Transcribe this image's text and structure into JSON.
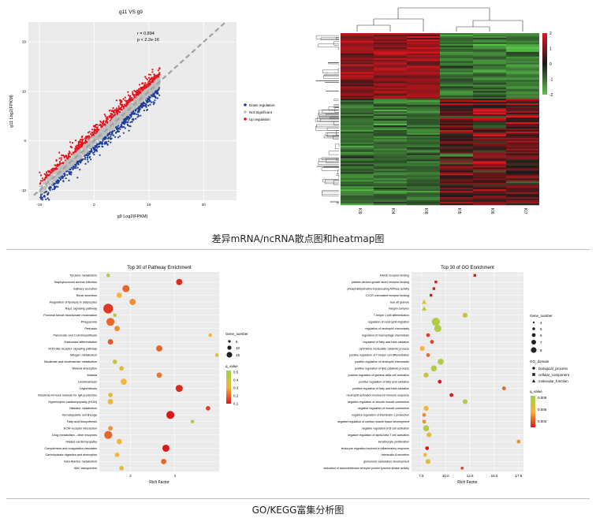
{
  "captions": {
    "top": "差异mRNA/ncRNA散点图和heatmap图",
    "bottom": "GO/KEGG富集分析图"
  },
  "colors": {
    "up": "#e3141c",
    "down": "#1f3e9a",
    "ns": "#bcbcbc",
    "heat_high": "#e3141c",
    "heat_mid": "#1a1a1a",
    "heat_low": "#58c54a",
    "grad_high": "#ffff00",
    "grad_low": "#d7191c"
  },
  "chart_data": [
    {
      "id": "scatter",
      "type": "scatter",
      "title": "g11 VS g9",
      "xlabel": "g9 Log2(FPKM)",
      "ylabel": "g11 Log2(FPKM)",
      "xlim": [
        -12,
        26
      ],
      "ylim": [
        -12,
        24
      ],
      "x_ticks": [
        "-10",
        "0",
        "10",
        "20"
      ],
      "y_ticks": [
        "-10",
        "0",
        "10",
        "20"
      ],
      "annotation_r": "r = 0.894",
      "annotation_p": "p < 2.2e-16",
      "legend": [
        "Down regulation",
        "Not Significant",
        "Up regulation"
      ],
      "legend_position": "right"
    },
    {
      "id": "heatmap",
      "type": "heatmap",
      "columns": [
        "KI9",
        "KI4",
        "KI8",
        "KI5",
        "KI6",
        "KI7"
      ],
      "colorbar_ticks": [
        "2",
        "1",
        "0",
        "-1",
        "-2"
      ],
      "colorbar_range": [
        -2,
        2
      ]
    },
    {
      "id": "kegg",
      "type": "scatter",
      "title": "Top 30 of Pathway Enrichment",
      "xlabel": "Rich Factor",
      "x_ticks": [
        "2",
        "4"
      ],
      "xlim": [
        0.6,
        6.0
      ],
      "categories": [
        "Tyrosine metabolism",
        "Staphylococcus aureus infection",
        "Salivary secretion",
        "Renin secretion",
        "Regulation of lipolysis in adipocytes",
        "Rap1 signaling pathway",
        "Proximal tubule bicarbonate reclamation",
        "Phagosome",
        "Pertussis",
        "Pancreatic and CoA biosynthesis",
        "Osteoclast differentiation",
        "NOD-like receptor signaling pathway",
        "Mitogen metabolism",
        "Nicotinate and nicotinamide metabolism",
        "Mineral absorption",
        "Malaria",
        "Leishmaniasis",
        "Legionellosis",
        "Intestinal immune network for IgA production",
        "Hypertrophic cardiomyopathy (HCM)",
        "Histidine metabolism",
        "Hematopoietic cell lineage",
        "Fatty acid biosynthesis",
        "ECM-receptor interaction",
        "Drug metabolism - other enzymes",
        "Dilated cardiomyopathy",
        "Complement and coagulation cascades",
        "Carbohydrate digestion and absorption",
        "beta-Alanine metabolism",
        "ABC transporters"
      ],
      "x": [
        1.0,
        4.2,
        1.8,
        1.5,
        2.1,
        1.0,
        1.3,
        1.1,
        1.4,
        5.6,
        1.1,
        3.3,
        5.9,
        1.3,
        1.6,
        3.3,
        1.7,
        4.2,
        1.1,
        1.1,
        5.5,
        3.8,
        4.8,
        1.1,
        1.0,
        1.5,
        3.6,
        1.4,
        3.5,
        1.6
      ],
      "size": [
        2,
        5,
        6,
        4,
        5,
        9,
        2,
        7,
        4,
        2,
        4,
        5,
        2,
        3,
        3,
        4,
        5,
        6,
        3,
        4,
        3,
        7,
        2,
        3,
        7,
        4,
        6,
        3,
        4,
        3
      ],
      "q_value": [
        0.45,
        0.12,
        0.2,
        0.3,
        0.25,
        0.14,
        0.45,
        0.2,
        0.25,
        0.3,
        0.18,
        0.2,
        0.35,
        0.4,
        0.35,
        0.22,
        0.3,
        0.12,
        0.35,
        0.3,
        0.15,
        0.1,
        0.45,
        0.25,
        0.2,
        0.3,
        0.1,
        0.3,
        0.2,
        0.35
      ],
      "size_legend_title": "Gene_number",
      "size_legend": [
        "5",
        "10",
        "15"
      ],
      "color_legend_title": "q_value",
      "color_legend": [
        "0.5",
        "0.4",
        "0.3",
        "0.2",
        "0.1"
      ],
      "legend_position": "right"
    },
    {
      "id": "go",
      "type": "scatter",
      "title": "Top 30 of GO Enrichment",
      "xlabel": "Rich Factor",
      "x_ticks": [
        "7.5",
        "10.0",
        "12.5",
        "15.0",
        "17.5"
      ],
      "xlim": [
        6.5,
        18.0
      ],
      "categories": [
        "RAGE receptor binding",
        "platelet-derived growth factor receptor binding",
        "phosphatidylcholine-translocating ATPase activity",
        "CXCR chemokine receptor binding",
        "tear alt granule",
        "integrin complex",
        "T-helper 1 cell differentiation",
        "regulation of neutrophil migration",
        "regulation of neutrophil chemotaxis",
        "regulation of macrophage chemotaxis",
        "regulation of fatty acid beta-oxidation",
        "pyrimidine nucleoside catabolic process",
        "positive regulation of T-helper cell differentiation",
        "positive regulation of neutrophil chemotaxis",
        "positive regulation of lipid catabolic process",
        "positive regulation of gamma-delta cell activation",
        "positive regulation of fatty acid oxidation",
        "positive regulation of fatty acid beta-oxidation",
        "neutrophil activation involved in immune response",
        "negative regulation of smooth muscle contraction",
        "negative regulation of muscle contraction",
        "negative regulation of interleukin-1 production",
        "negative regulation of cardiac muscle tissue development",
        "negative regulation of B cell activation",
        "negative regulation of alpha-beta T cell activation",
        "keratinocyte proliferation",
        "leukocyte migration involved in inflammatory response",
        "interleukin-8 secretion",
        "glomerular vasculature development",
        "activation of transmembrane receptor protein tyrosine kinase activity"
      ],
      "x": [
        13.0,
        9.0,
        8.8,
        8.5,
        7.8,
        7.8,
        12.0,
        9.0,
        9.2,
        8.2,
        8.6,
        7.6,
        8.2,
        9.5,
        8.8,
        8.0,
        9.4,
        16.0,
        10.6,
        12.0,
        8.0,
        7.8,
        7.8,
        8.0,
        8.3,
        17.5,
        8.1,
        7.9,
        8.2,
        11.7
      ],
      "size": [
        2,
        2,
        2,
        2,
        3,
        3,
        3,
        6,
        5,
        2,
        2,
        3,
        2,
        4,
        4,
        3,
        2,
        2,
        2,
        3,
        3,
        2,
        2,
        4,
        3,
        2,
        2,
        2,
        3,
        2
      ],
      "q_value": [
        0.001,
        0.001,
        0.001,
        0.001,
        0.006,
        0.007,
        0.007,
        0.008,
        0.008,
        0.002,
        0.002,
        0.005,
        0.003,
        0.008,
        0.008,
        0.007,
        0.001,
        0.003,
        0.001,
        0.008,
        0.005,
        0.004,
        0.004,
        0.008,
        0.006,
        0.004,
        0.001,
        0.005,
        0.006,
        0.002
      ],
      "domain": [
        "molecular_function",
        "molecular_function",
        "molecular_function",
        "molecular_function",
        "cellular_component",
        "cellular_component",
        "biological_process",
        "biological_process",
        "biological_process",
        "biological_process",
        "biological_process",
        "biological_process",
        "biological_process",
        "biological_process",
        "biological_process",
        "biological_process",
        "biological_process",
        "biological_process",
        "biological_process",
        "biological_process",
        "biological_process",
        "biological_process",
        "biological_process",
        "biological_process",
        "biological_process",
        "biological_process",
        "biological_process",
        "biological_process",
        "biological_process",
        "molecular_function"
      ],
      "size_legend_title": "Gene_number",
      "size_legend": [
        "4",
        "5",
        "6",
        "7",
        "8"
      ],
      "domain_legend_title": "GO_domain",
      "domain_legend": [
        "biological_process",
        "cellular_component",
        "molecular_function"
      ],
      "color_legend_title": "q_value",
      "color_legend": [
        "0.009",
        "0.006",
        "0.003"
      ],
      "legend_position": "right"
    }
  ]
}
